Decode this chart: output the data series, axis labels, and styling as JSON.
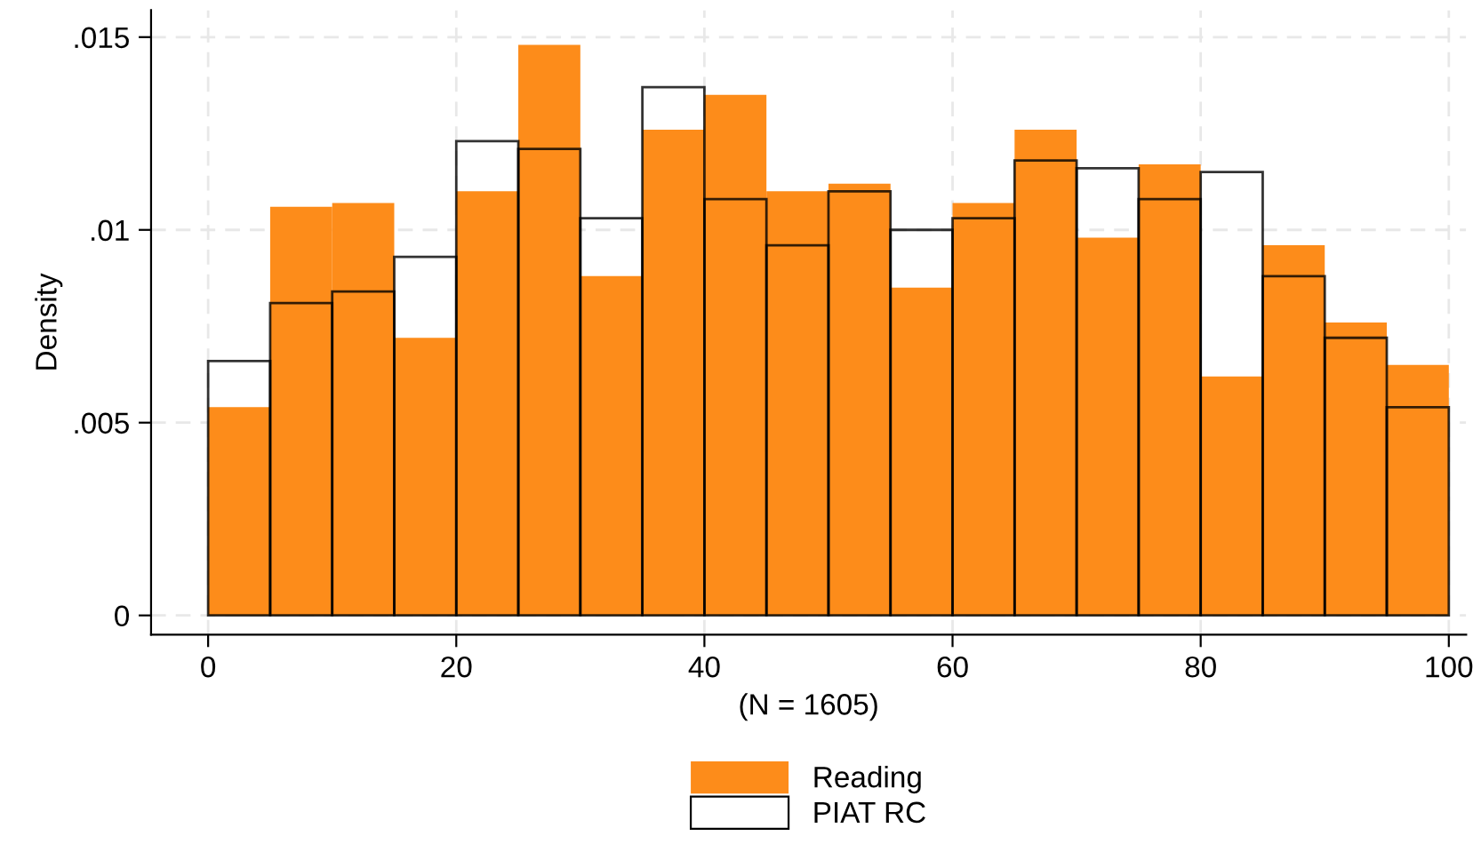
{
  "chart_data": {
    "type": "histogram",
    "xlabel": "(N = 1605)",
    "ylabel": "Density",
    "bins": [
      0,
      5,
      10,
      15,
      20,
      25,
      30,
      35,
      40,
      45,
      50,
      55,
      60,
      65,
      70,
      75,
      80,
      85,
      90,
      95,
      100
    ],
    "series": [
      {
        "name": "Reading",
        "color": "#fd8c1a",
        "values": [
          0.0054,
          0.0106,
          0.0107,
          0.0072,
          0.011,
          0.0148,
          0.0088,
          0.0126,
          0.0135,
          0.011,
          0.0112,
          0.0085,
          0.0107,
          0.0126,
          0.0098,
          0.0117,
          0.0062,
          0.0096,
          0.0076,
          0.0065
        ]
      },
      {
        "name": "PIAT RC",
        "color": "#000000",
        "values": [
          0.0066,
          0.0081,
          0.0084,
          0.0093,
          0.0123,
          0.0121,
          0.0103,
          0.0137,
          0.0108,
          0.0096,
          0.011,
          0.01,
          0.0103,
          0.0118,
          0.0116,
          0.0108,
          0.0115,
          0.0088,
          0.0072,
          0.0054
        ]
      }
    ],
    "xlim": [
      -4.6,
      101.4
    ],
    "ylim": [
      -0.0005,
      0.0157
    ],
    "xticks": [
      0,
      20,
      40,
      60,
      80,
      100
    ],
    "yticks": [
      {
        "value": 0,
        "label": "0"
      },
      {
        "value": 0.005,
        "label": ".005"
      },
      {
        "value": 0.01,
        "label": ".01"
      },
      {
        "value": 0.015,
        "label": ".015"
      }
    ],
    "grid": true,
    "legend": "bottom"
  }
}
